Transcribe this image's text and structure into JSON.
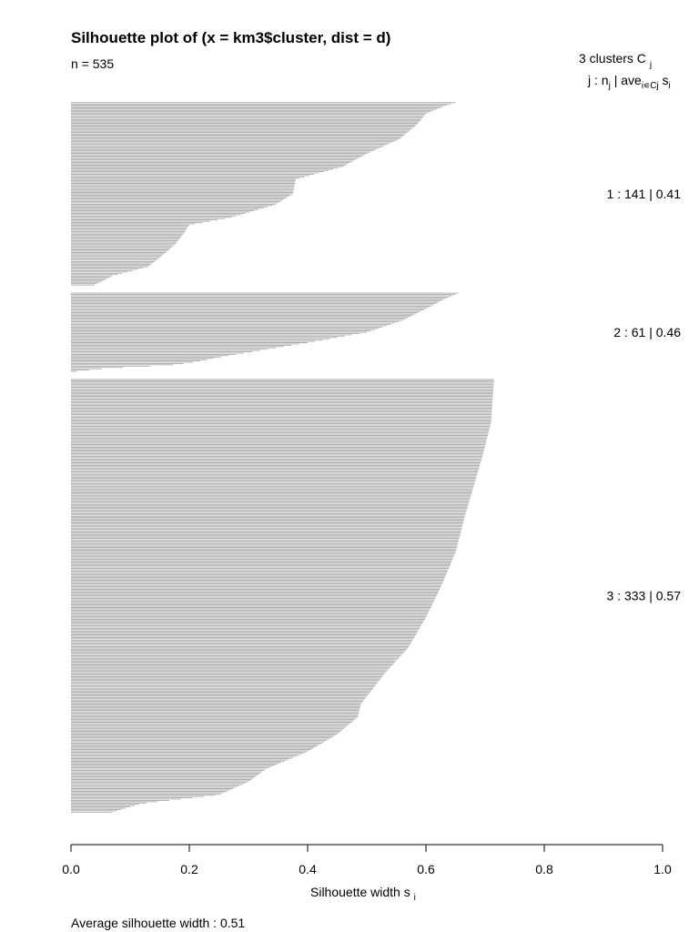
{
  "chart_data": {
    "type": "bar",
    "orientation": "horizontal",
    "title": "Silhouette plot of (x = km3$cluster, dist = d)",
    "n_label": "n = 535",
    "legend_header": {
      "count_label": "3  clusters  C",
      "count_sub": "j",
      "col_header": "j :  n"
    },
    "xlabel": "Silhouette width s",
    "xlabel_sub": "i",
    "xlim": [
      0,
      1
    ],
    "xticks": [
      0,
      0.2,
      0.4,
      0.6,
      0.8,
      1
    ],
    "xtick_labels": [
      "0.0",
      "0.2",
      "0.4",
      "0.6",
      "0.8",
      "1.0"
    ],
    "bar_color": "#aaaaaa",
    "average_label": "Average silhouette width :  0.51",
    "average": 0.51,
    "clusters": [
      {
        "label": "1 :   141  |  0.41",
        "id": 1,
        "n": 141,
        "avg": 0.41,
        "profile": [
          [
            0,
            0.65
          ],
          [
            0.02,
            0.63
          ],
          [
            0.06,
            0.6
          ],
          [
            0.12,
            0.585
          ],
          [
            0.2,
            0.555
          ],
          [
            0.28,
            0.5
          ],
          [
            0.35,
            0.46
          ],
          [
            0.42,
            0.38
          ],
          [
            0.5,
            0.375
          ],
          [
            0.56,
            0.345
          ],
          [
            0.63,
            0.27
          ],
          [
            0.67,
            0.2
          ],
          [
            0.72,
            0.19
          ],
          [
            0.78,
            0.175
          ],
          [
            0.85,
            0.15
          ],
          [
            0.9,
            0.13
          ],
          [
            0.95,
            0.07
          ],
          [
            1,
            0.04
          ]
        ]
      },
      {
        "label": "2 :   61  |  0.46",
        "id": 2,
        "n": 61,
        "avg": 0.46,
        "profile": [
          [
            0,
            0.655
          ],
          [
            0.08,
            0.63
          ],
          [
            0.2,
            0.6
          ],
          [
            0.35,
            0.56
          ],
          [
            0.5,
            0.5
          ],
          [
            0.62,
            0.41
          ],
          [
            0.72,
            0.33
          ],
          [
            0.82,
            0.25
          ],
          [
            0.88,
            0.21
          ],
          [
            0.92,
            0.17
          ],
          [
            0.96,
            0.06
          ],
          [
            1,
            0.01
          ]
        ]
      },
      {
        "label": "3 :   333  |  0.57",
        "id": 3,
        "n": 333,
        "avg": 0.57,
        "profile": [
          [
            0,
            0.715
          ],
          [
            0.1,
            0.71
          ],
          [
            0.18,
            0.695
          ],
          [
            0.25,
            0.68
          ],
          [
            0.32,
            0.665
          ],
          [
            0.4,
            0.65
          ],
          [
            0.48,
            0.625
          ],
          [
            0.55,
            0.6
          ],
          [
            0.62,
            0.57
          ],
          [
            0.68,
            0.53
          ],
          [
            0.75,
            0.49
          ],
          [
            0.78,
            0.485
          ],
          [
            0.82,
            0.45
          ],
          [
            0.86,
            0.4
          ],
          [
            0.9,
            0.33
          ],
          [
            0.93,
            0.3
          ],
          [
            0.96,
            0.25
          ],
          [
            0.98,
            0.12
          ],
          [
            1,
            0.07
          ]
        ]
      }
    ]
  }
}
